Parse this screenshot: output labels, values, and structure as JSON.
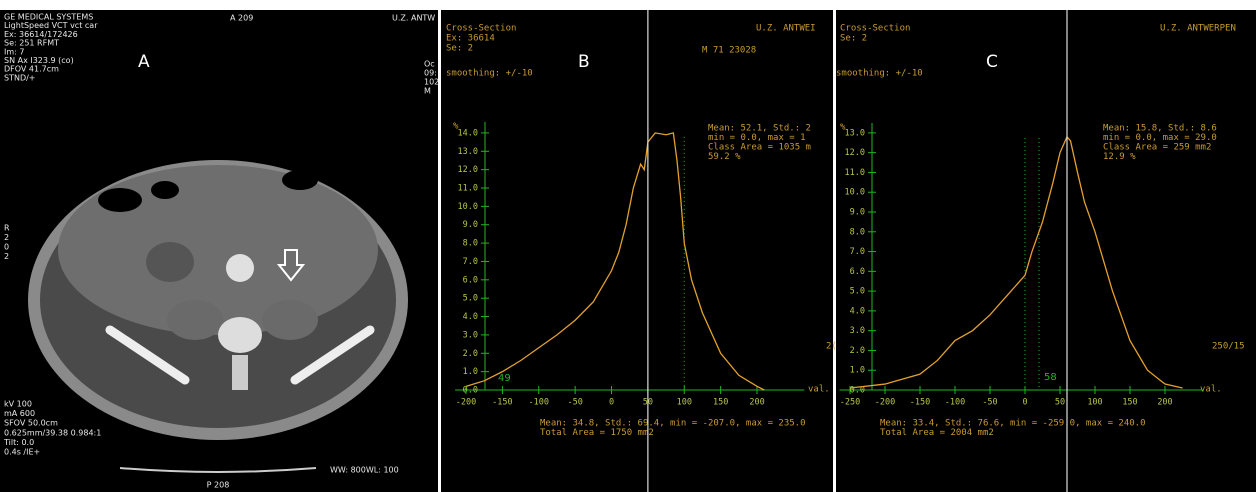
{
  "panel_a": {
    "letter": "A",
    "top_left": [
      "GE MEDICAL SYSTEMS",
      "LightSpeed VCT vct car",
      "Ex: 36614/172426",
      "Se: 251 RFMT",
      "Im: 7",
      "SN Ax I323.9 (co)",
      "DFOV 41.7cm",
      "STND/+"
    ],
    "top_center": "A 209",
    "top_right": "U.Z. ANTW",
    "right_side": [
      "Oc",
      "09:",
      "102",
      "M"
    ],
    "left_side": [
      "R",
      "2",
      "0",
      "2"
    ],
    "bottom_left": [
      "kV 100",
      "mA 600",
      "SFOV 50.0cm",
      "0.625mm/39.38 0.984:1",
      "Tilt: 0.0",
      "0.4s /IE+"
    ],
    "bottom_center": "P 208",
    "bottom_right": "WW: 800WL: 100"
  },
  "chart_data": [
    {
      "type": "line",
      "letter": "B",
      "header": [
        "Cross-Section",
        "Ex: 36614",
        "Se: 2"
      ],
      "smoothing": "smoothing: +/-10",
      "site": "U.Z. ANTWEI",
      "site_sub": "M 71  23028",
      "class_stats": [
        "Mean: 52.1, Std.: 2",
        "min =  0.0, max = 1",
        "Class Area = 1035 m",
        "59.2 %"
      ],
      "total_stats": [
        "Mean: 34.8, Std.: 69.4, min = -207.0, max = 235.0",
        "Total Area = 1750 mm2"
      ],
      "side_text": "2(",
      "marker_label": "49",
      "y_label": "%",
      "x_label": "val.",
      "color": "#e3a12c",
      "axis_color": "#1fb81f",
      "cursor": 50,
      "dotted": [
        100
      ],
      "xlim": [
        -215,
        265
      ],
      "ylim": [
        0,
        14.6
      ],
      "xticks": [
        -200,
        -150,
        -100,
        -50,
        0,
        50,
        100,
        150,
        200
      ],
      "yticks": [
        {
          "value": 0,
          "label": "0.0"
        },
        {
          "value": 1,
          "label": "1.0"
        },
        {
          "value": 2,
          "label": "2.0"
        },
        {
          "value": 3,
          "label": "3.0"
        },
        {
          "value": 4,
          "label": "4.0"
        },
        {
          "value": 5,
          "label": "5.0"
        },
        {
          "value": 6,
          "label": "6.0"
        },
        {
          "value": 7,
          "label": "7.0"
        },
        {
          "value": 8,
          "label": "8.0"
        },
        {
          "value": 9,
          "label": "9.0"
        },
        {
          "value": 10,
          "label": "10.0"
        },
        {
          "value": 11,
          "label": "11.0"
        },
        {
          "value": 12,
          "label": "12.0"
        },
        {
          "value": 13,
          "label": "13.0"
        },
        {
          "value": 14,
          "label": "14.0"
        }
      ],
      "x": [
        -200,
        -175,
        -150,
        -125,
        -100,
        -75,
        -50,
        -25,
        0,
        10,
        20,
        30,
        40,
        45,
        50,
        60,
        75,
        85,
        90,
        95,
        100,
        110,
        125,
        150,
        175,
        200,
        210
      ],
      "values": [
        0.2,
        0.5,
        1.0,
        1.6,
        2.3,
        3.0,
        3.8,
        4.8,
        6.5,
        7.5,
        9.0,
        11.0,
        12.3,
        12.0,
        13.5,
        14.0,
        13.9,
        14.0,
        12.5,
        10.5,
        8.0,
        6.0,
        4.2,
        2.0,
        0.8,
        0.2,
        0.0
      ]
    },
    {
      "type": "line",
      "letter": "C",
      "header": [
        "Cross-Section",
        "Se: 2"
      ],
      "smoothing": "smoothing: +/-10",
      "site": "U.Z. ANTWERPEN",
      "class_stats": [
        "Mean: 15.8, Std.: 8.6",
        "min =  0.0, max = 29.0",
        "Class Area = 259 mm2",
        "12.9 %"
      ],
      "total_stats": [
        "Mean: 33.4, Std.: 76.6, min = -259.0, max = 240.0",
        "Total Area = 2004 mm2"
      ],
      "side_text": "250/15",
      "marker_label": "58",
      "y_label": "%",
      "x_label": "val.",
      "color": "#e3a12c",
      "axis_color": "#1fb81f",
      "cursor": 60,
      "dotted": [
        0,
        20
      ],
      "xlim": [
        -265,
        255
      ],
      "ylim": [
        0,
        13.5
      ],
      "xticks": [
        -250,
        -200,
        -150,
        -100,
        -50,
        0,
        50,
        100,
        150,
        200
      ],
      "yticks": [
        {
          "value": 0,
          "label": "0.0"
        },
        {
          "value": 1,
          "label": "1.0"
        },
        {
          "value": 2,
          "label": "2.0"
        },
        {
          "value": 3,
          "label": "3.0"
        },
        {
          "value": 4,
          "label": "4.0"
        },
        {
          "value": 5,
          "label": "5.0"
        },
        {
          "value": 6,
          "label": "6.0"
        },
        {
          "value": 7,
          "label": "7.0"
        },
        {
          "value": 8,
          "label": "8.0"
        },
        {
          "value": 9,
          "label": "9.0"
        },
        {
          "value": 10,
          "label": "10.0"
        },
        {
          "value": 11,
          "label": "11.0"
        },
        {
          "value": 12,
          "label": "12.0"
        },
        {
          "value": 13,
          "label": "13.0"
        }
      ],
      "x": [
        -250,
        -200,
        -150,
        -125,
        -100,
        -75,
        -50,
        -25,
        0,
        10,
        25,
        40,
        50,
        60,
        65,
        75,
        85,
        100,
        125,
        150,
        175,
        200,
        225
      ],
      "values": [
        0.1,
        0.3,
        0.8,
        1.5,
        2.5,
        3.0,
        3.8,
        4.8,
        5.8,
        7.0,
        8.5,
        10.5,
        12.0,
        12.8,
        12.6,
        11.0,
        9.5,
        8.0,
        5.0,
        2.5,
        1.0,
        0.3,
        0.1
      ]
    }
  ]
}
